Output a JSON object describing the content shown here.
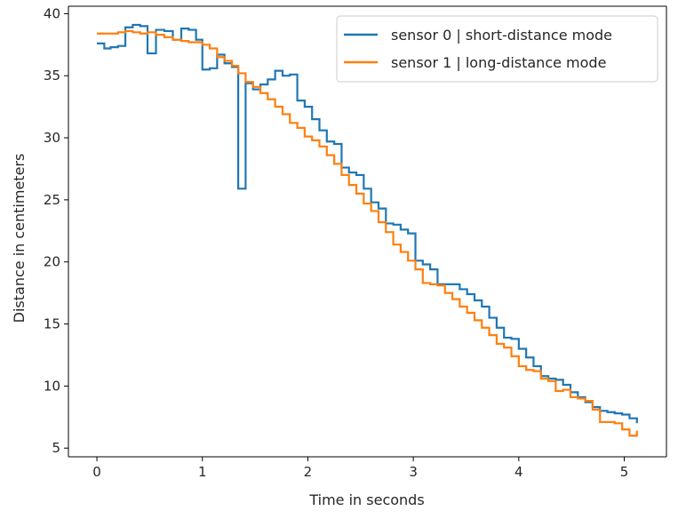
{
  "chart_data": {
    "type": "line",
    "step": true,
    "title": "",
    "xlabel": "Time in seconds",
    "ylabel": "Distance in centimeters",
    "xlim": [
      -0.27,
      5.4
    ],
    "ylim": [
      4.3,
      40.6
    ],
    "xticks": [
      0,
      1,
      2,
      3,
      4,
      5
    ],
    "yticks": [
      5,
      10,
      15,
      20,
      25,
      30,
      35,
      40
    ],
    "xtick_labels": [
      "0",
      "1",
      "2",
      "3",
      "4",
      "5"
    ],
    "ytick_labels": [
      "5",
      "10",
      "15",
      "20",
      "25",
      "30",
      "35",
      "40"
    ],
    "grid": false,
    "legend_position": "upper right",
    "series": [
      {
        "name": "sensor 0 | short-distance mode",
        "color": "#1f77b4",
        "x": [
          0,
          0.07,
          0.13,
          0.2,
          0.27,
          0.34,
          0.41,
          0.48,
          0.56,
          0.64,
          0.72,
          0.8,
          0.87,
          0.94,
          1.0,
          1.07,
          1.14,
          1.21,
          1.28,
          1.34,
          1.41,
          1.48,
          1.55,
          1.62,
          1.69,
          1.76,
          1.83,
          1.9,
          1.97,
          2.04,
          2.11,
          2.18,
          2.25,
          2.32,
          2.39,
          2.46,
          2.53,
          2.6,
          2.67,
          2.74,
          2.81,
          2.88,
          2.95,
          3.02,
          3.09,
          3.16,
          3.23,
          3.3,
          3.37,
          3.44,
          3.51,
          3.58,
          3.65,
          3.72,
          3.79,
          3.86,
          3.93,
          4.0,
          4.07,
          4.14,
          4.21,
          4.28,
          4.35,
          4.42,
          4.49,
          4.56,
          4.63,
          4.7,
          4.77,
          4.84,
          4.91,
          4.98,
          5.05,
          5.12
        ],
        "y": [
          37.6,
          37.2,
          37.3,
          37.4,
          38.9,
          39.1,
          39.0,
          36.8,
          38.7,
          38.6,
          37.9,
          38.8,
          38.7,
          37.9,
          35.5,
          35.6,
          36.7,
          36.0,
          35.7,
          25.9,
          34.4,
          33.9,
          34.3,
          34.7,
          35.4,
          35.0,
          35.1,
          33.0,
          32.5,
          31.5,
          30.6,
          29.7,
          29.5,
          27.6,
          27.2,
          27.0,
          25.9,
          24.8,
          24.3,
          23.1,
          23.0,
          22.6,
          22.3,
          20.1,
          19.8,
          19.4,
          18.2,
          18.2,
          18.2,
          17.8,
          17.4,
          16.9,
          16.4,
          15.5,
          14.7,
          13.9,
          13.8,
          13.0,
          12.3,
          11.6,
          10.8,
          10.6,
          10.5,
          10.1,
          9.5,
          9.1,
          8.7,
          8.3,
          8.0,
          7.9,
          7.8,
          7.7,
          7.4,
          7.0
        ]
      },
      {
        "name": "sensor 1 | long-distance mode",
        "color": "#ff7f0e",
        "x": [
          0,
          0.13,
          0.2,
          0.27,
          0.34,
          0.41,
          0.48,
          0.56,
          0.64,
          0.72,
          0.8,
          0.87,
          0.94,
          1.0,
          1.07,
          1.14,
          1.21,
          1.28,
          1.34,
          1.41,
          1.48,
          1.55,
          1.62,
          1.69,
          1.76,
          1.83,
          1.9,
          1.97,
          2.04,
          2.11,
          2.18,
          2.25,
          2.32,
          2.39,
          2.46,
          2.53,
          2.6,
          2.67,
          2.74,
          2.81,
          2.88,
          2.95,
          3.02,
          3.09,
          3.16,
          3.23,
          3.3,
          3.37,
          3.44,
          3.51,
          3.58,
          3.65,
          3.72,
          3.79,
          3.86,
          3.93,
          4.0,
          4.07,
          4.14,
          4.21,
          4.28,
          4.35,
          4.42,
          4.49,
          4.56,
          4.63,
          4.7,
          4.77,
          4.84,
          4.91,
          4.98,
          5.05,
          5.12
        ],
        "y": [
          38.4,
          38.4,
          38.5,
          38.6,
          38.5,
          38.4,
          38.5,
          38.3,
          38.1,
          37.9,
          37.8,
          37.7,
          37.7,
          37.5,
          37.2,
          36.5,
          36.2,
          35.8,
          35.2,
          34.5,
          34.1,
          33.6,
          33.1,
          32.5,
          31.9,
          31.2,
          30.8,
          30.1,
          29.8,
          29.3,
          28.6,
          27.9,
          27.0,
          26.2,
          25.5,
          24.7,
          24.1,
          23.2,
          22.4,
          21.4,
          20.8,
          20.1,
          19.4,
          18.3,
          18.2,
          18.1,
          17.5,
          17.0,
          16.4,
          15.9,
          15.3,
          14.7,
          14.1,
          13.4,
          13.1,
          12.4,
          11.6,
          11.3,
          11.2,
          10.6,
          10.4,
          9.6,
          9.7,
          9.1,
          9.0,
          8.8,
          8.1,
          7.1,
          7.1,
          7.0,
          6.5,
          6.0,
          6.4
        ]
      }
    ]
  }
}
